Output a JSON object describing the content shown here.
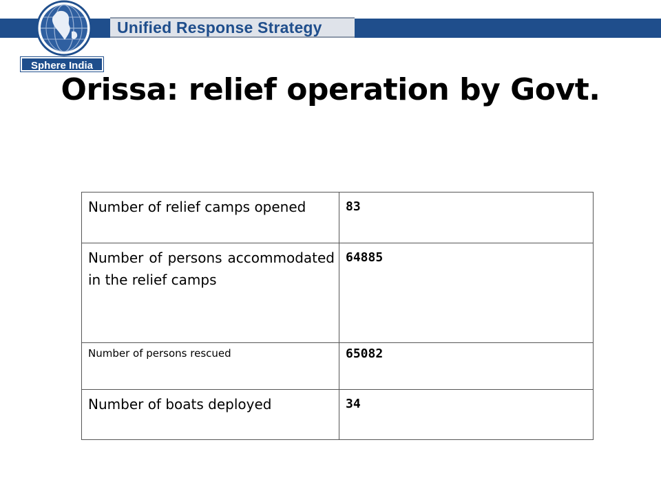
{
  "header": {
    "banner_label": "Unified Response Strategy",
    "logo_tag": "Sphere India",
    "brand_color": "#1f4e8c"
  },
  "slide": {
    "title": "Orissa: relief operation by Govt."
  },
  "table": {
    "rows": [
      {
        "label": "Number of relief camps opened",
        "value": "83"
      },
      {
        "label": "Number of persons accommodated in the relief camps",
        "value": "64885"
      },
      {
        "label": "Number of persons rescued",
        "value": "65082"
      },
      {
        "label": "Number of boats deployed",
        "value": "34"
      }
    ]
  }
}
